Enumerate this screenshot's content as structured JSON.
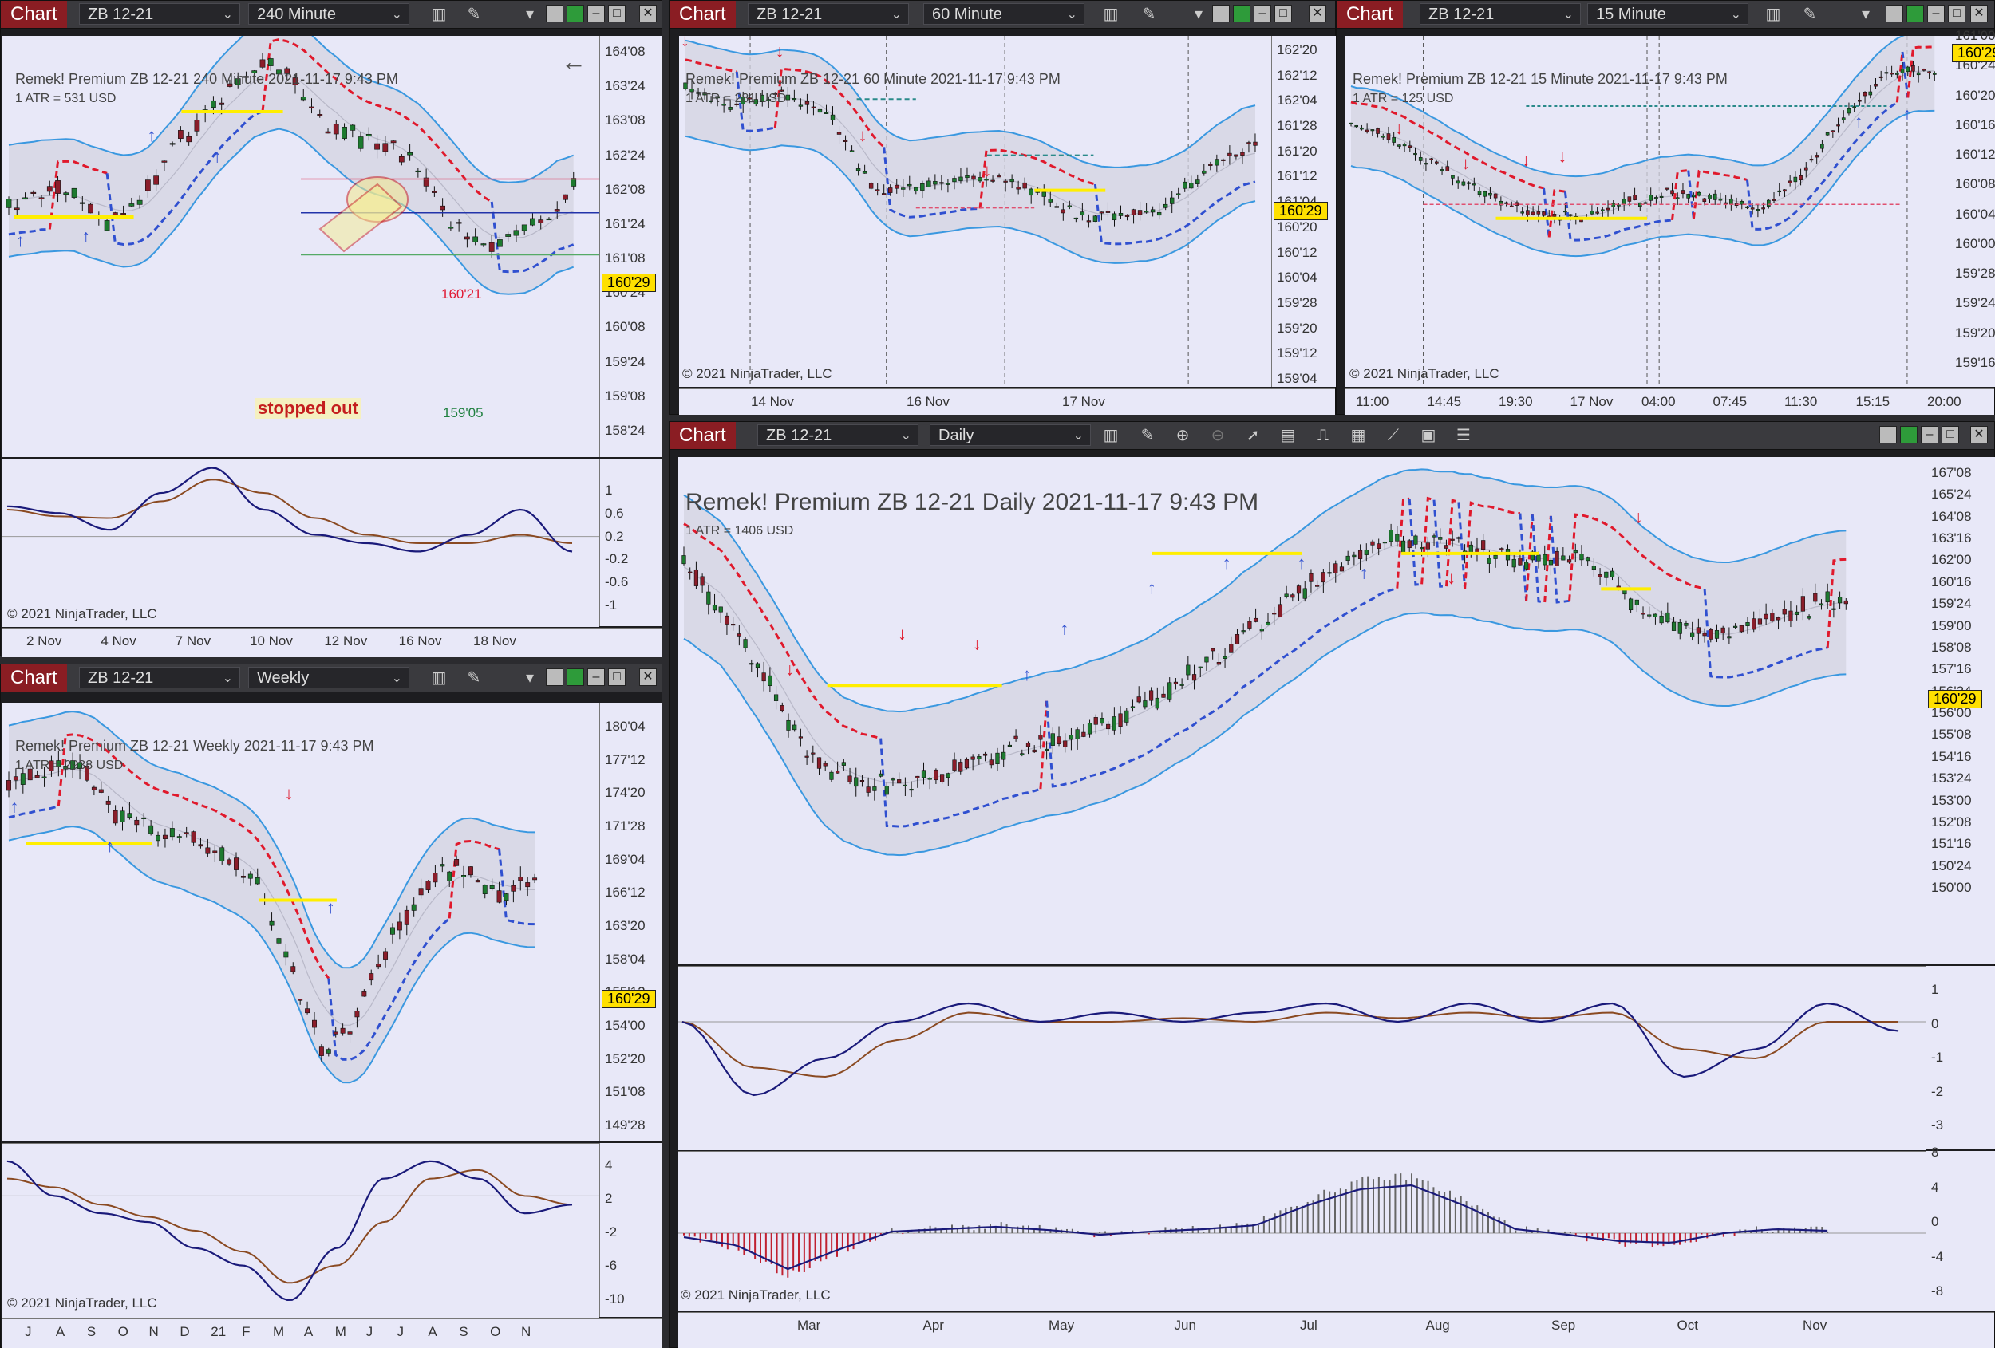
{
  "app": {
    "title": "Chart"
  },
  "instrument": "ZB 12-21",
  "last_price": "160'29",
  "copyright": "© 2021 NinjaTrader, LLC",
  "colors": {
    "title_bg": "#8a1d23",
    "plot_bg": "#e8e8f8",
    "band": "#3a98e0",
    "upper_trend": "#e0192c",
    "lower_trend": "#3050d0",
    "level": "#ffee00",
    "price_box": "#ffe000",
    "up_candle": "#1d7a2f",
    "down_candle": "#8b1d2a"
  },
  "icons": [
    "bar-style-icon",
    "drawing-tool-icon",
    "zoom-in-icon",
    "zoom-out-icon",
    "pointer-icon",
    "data-box-icon",
    "indicators-icon",
    "strategies-icon",
    "properties-icon",
    "templates-icon",
    "list-icon",
    "back-arrow-icon"
  ],
  "charts": {
    "c240": {
      "interval": "240 Minute",
      "header": "Remek!  Premium  ZB 12-21  240 Minute  2021-11-17 9:43 PM",
      "atr": "1 ATR = 531 USD",
      "price_labels": [
        "164'08",
        "163'24",
        "163'08",
        "162'24",
        "162'08",
        "161'24",
        "161'08",
        "160'24",
        "160'08",
        "159'24",
        "159'08",
        "158'24"
      ],
      "osc_labels": [
        "1",
        "0.6",
        "0.2",
        "-0.2",
        "-0.6",
        "-1"
      ],
      "time_labels": [
        "2 Nov",
        "4 Nov",
        "7 Nov",
        "10 Nov",
        "12 Nov",
        "16 Nov",
        "18 Nov"
      ],
      "annotations": {
        "stopped_out": "stopped out",
        "target": "160'21",
        "stop": "159'05"
      }
    },
    "c60": {
      "interval": "60 Minute",
      "header": "Remek!  Premium  ZB 12-21  60 Minute  2021-11-17 9:43 PM",
      "atr": "1 ATR = 281 USD",
      "price_labels": [
        "162'20",
        "162'12",
        "162'04",
        "161'28",
        "161'20",
        "161'12",
        "161'04",
        "160'20",
        "160'12",
        "160'04",
        "159'28",
        "159'20",
        "159'12",
        "159'04"
      ],
      "time_labels": [
        "14 Nov",
        "16 Nov",
        "17 Nov"
      ]
    },
    "c15": {
      "interval": "15 Minute",
      "header": "Remek!  Premium  ZB 12-21  15 Minute  2021-11-17 9:43 PM",
      "atr": "1 ATR = 125 USD",
      "price_labels": [
        "161'00",
        "160'24",
        "160'20",
        "160'16",
        "160'12",
        "160'08",
        "160'04",
        "160'00",
        "159'28",
        "159'24",
        "159'20",
        "159'16"
      ],
      "time_labels": [
        "11:00",
        "14:45",
        "19:30",
        "17 Nov",
        "04:00",
        "07:45",
        "11:30",
        "15:15",
        "20:00"
      ]
    },
    "cW": {
      "interval": "Weekly",
      "header": "Remek!  Premium  ZB 12-21  Weekly  2021-11-17 9:43 PM",
      "atr": "1 ATR = 2938 USD",
      "price_labels": [
        "180'04",
        "177'12",
        "174'20",
        "171'28",
        "169'04",
        "166'12",
        "163'20",
        "158'04",
        "155'12",
        "154'00",
        "152'20",
        "151'08",
        "149'28"
      ],
      "osc_labels": [
        "4",
        "2",
        "-2",
        "-6",
        "-10"
      ],
      "time_labels": [
        "J",
        "A",
        "S",
        "O",
        "N",
        "D",
        "21",
        "F",
        "M",
        "A",
        "M",
        "J",
        "J",
        "A",
        "S",
        "O",
        "N"
      ]
    },
    "cD": {
      "interval": "Daily",
      "header": "Remek!  Premium  ZB 12-21  Daily  2021-11-17 9:43 PM",
      "atr": "1 ATR = 1406 USD",
      "price_labels": [
        "167'08",
        "165'24",
        "164'08",
        "163'16",
        "162'00",
        "160'16",
        "159'24",
        "159'00",
        "158'08",
        "157'16",
        "156'24",
        "156'00",
        "155'08",
        "154'16",
        "153'24",
        "153'00",
        "152'08",
        "151'16",
        "150'24",
        "150'00"
      ],
      "osc_labels": [
        "1",
        "0",
        "-1",
        "-2",
        "-3"
      ],
      "hist_labels": [
        "8",
        "4",
        "0",
        "-4",
        "-8"
      ],
      "time_labels": [
        "Mar",
        "Apr",
        "May",
        "Jun",
        "Jul",
        "Aug",
        "Sep",
        "Oct",
        "Nov"
      ]
    }
  }
}
